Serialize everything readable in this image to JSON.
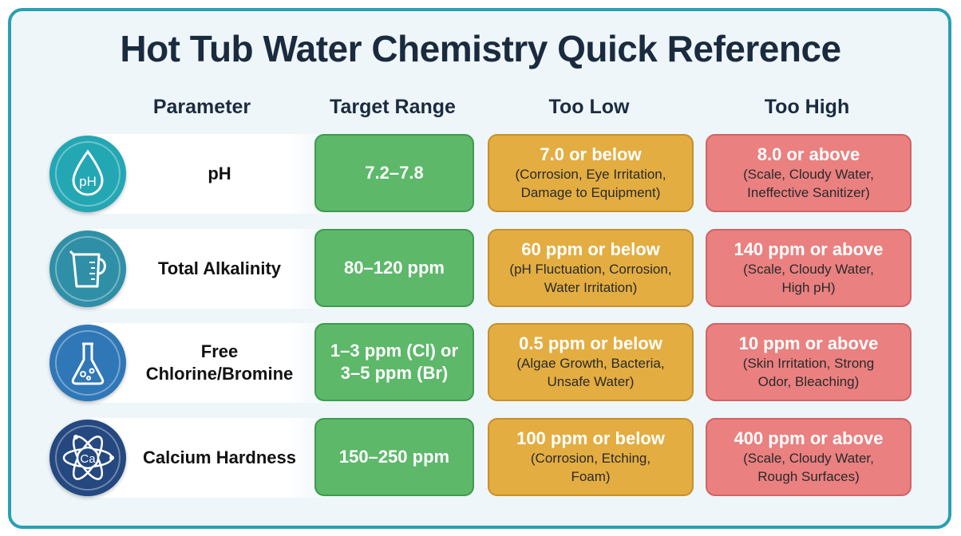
{
  "title": "Hot Tub Water Chemistry Quick Reference",
  "headers": {
    "parameter": "Parameter",
    "target": "Target Range",
    "low": "Too Low",
    "high": "Too High"
  },
  "rows": [
    {
      "icon": "ph-drop-icon",
      "icon_text": "pH",
      "icon_color": "#23a7b3",
      "label_lines": [
        "pH"
      ],
      "target_lines": [
        "7.2–7.8"
      ],
      "low": {
        "main": "7.0 or below",
        "note": [
          "(Corrosion, Eye Irritation,",
          "Damage to Equipment)"
        ]
      },
      "high": {
        "main": "8.0 or above",
        "note": [
          "(Scale, Cloudy Water,",
          "Ineffective Sanitizer)"
        ]
      }
    },
    {
      "icon": "measuring-cup-icon",
      "icon_text": "",
      "icon_color": "#2f8fa6",
      "label_lines": [
        "Total Alkalinity"
      ],
      "target_lines": [
        "80–120 ppm"
      ],
      "low": {
        "main": "60 ppm or below",
        "note": [
          "(pH Fluctuation, Corrosion,",
          "Water Irritation)"
        ]
      },
      "high": {
        "main": "140 ppm or above",
        "note": [
          "(Scale, Cloudy Water,",
          "High pH)"
        ]
      }
    },
    {
      "icon": "flask-icon",
      "icon_text": "",
      "icon_color": "#2f77b6",
      "label_lines": [
        "Free",
        "Chlorine/Bromine"
      ],
      "target_lines": [
        "1–3 ppm (Cl) or",
        "3–5 ppm (Br)"
      ],
      "low": {
        "main": "0.5 ppm or below",
        "note": [
          "(Algae Growth, Bacteria,",
          "Unsafe Water)"
        ]
      },
      "high": {
        "main": "10 ppm or above",
        "note": [
          "(Skin Irritation, Strong",
          "Odor, Bleaching)"
        ]
      }
    },
    {
      "icon": "calcium-atom-icon",
      "icon_text": "Ca",
      "icon_color": "#24487f",
      "label_lines": [
        "Calcium Hardness"
      ],
      "target_lines": [
        "150–250 ppm"
      ],
      "low": {
        "main": "100 ppm or below",
        "note": [
          "(Corrosion, Etching,",
          "Foam)"
        ]
      },
      "high": {
        "main": "400 ppm or above",
        "note": [
          "(Scale, Cloudy Water,",
          "Rough Surfaces)"
        ]
      }
    }
  ]
}
